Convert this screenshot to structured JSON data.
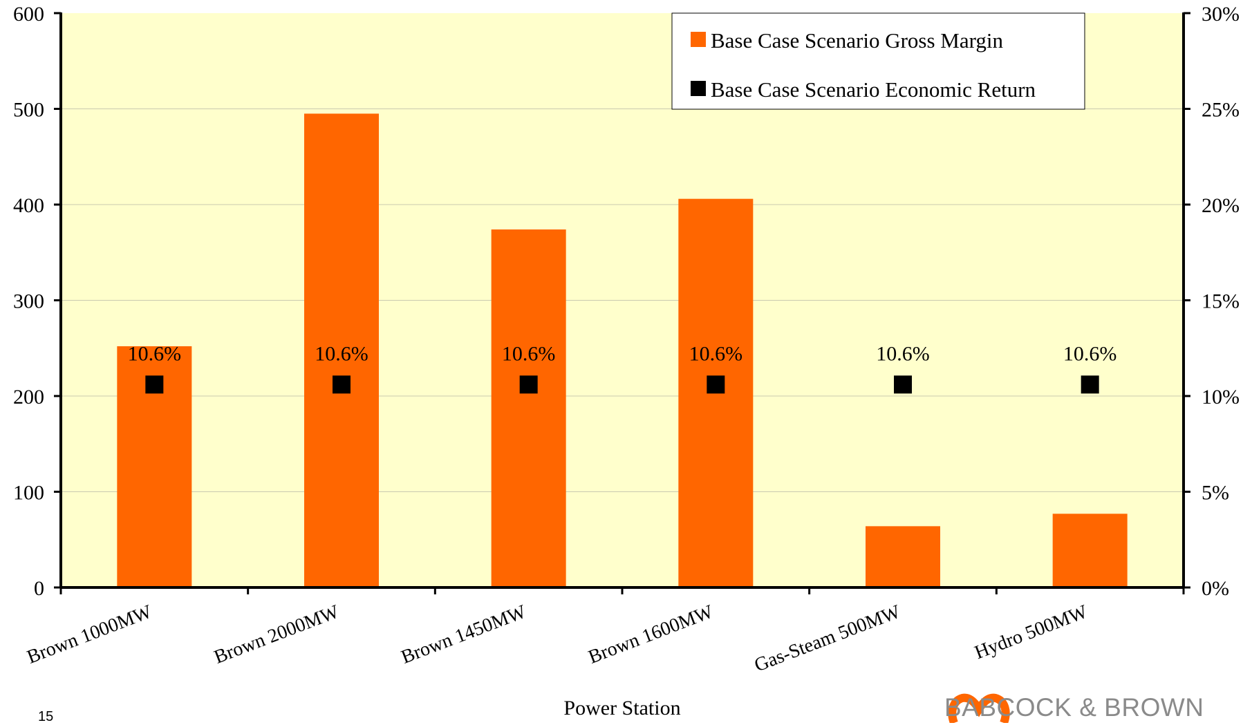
{
  "chart_data": {
    "type": "bar",
    "title": "",
    "xlabel": "Power Station",
    "ylabel": "",
    "categories": [
      "Brown 1000MW",
      "Brown 2000MW",
      "Brown 1450MW",
      "Brown 1600MW",
      "Gas-Steam 500MW",
      "Hydro 500MW"
    ],
    "series": [
      {
        "name": "Base Case Scenario Gross Margin",
        "kind": "bar",
        "axis": "left",
        "color": "#FF6600",
        "values": [
          252,
          495,
          374,
          406,
          64,
          77
        ]
      },
      {
        "name": "Base Case Scenario Economic Return",
        "kind": "scatter",
        "axis": "right",
        "color": "#000000",
        "values": [
          0.106,
          0.106,
          0.106,
          0.106,
          0.106,
          0.106
        ],
        "labels": [
          "10.6%",
          "10.6%",
          "10.6%",
          "10.6%",
          "10.6%",
          "10.6%"
        ]
      }
    ],
    "ylim": [
      0,
      600
    ],
    "yticks": [
      "0",
      "100",
      "200",
      "300",
      "400",
      "500",
      "600"
    ],
    "y2lim": [
      0,
      0.3
    ],
    "y2ticks": [
      "0%",
      "5%",
      "10%",
      "15%",
      "20%",
      "25%",
      "30%"
    ],
    "grid": true,
    "legend": "top-right",
    "plot_background": "#FFFFCC"
  },
  "footer": {
    "page_number": "15",
    "brand": "BABCOCK & BROWN"
  }
}
